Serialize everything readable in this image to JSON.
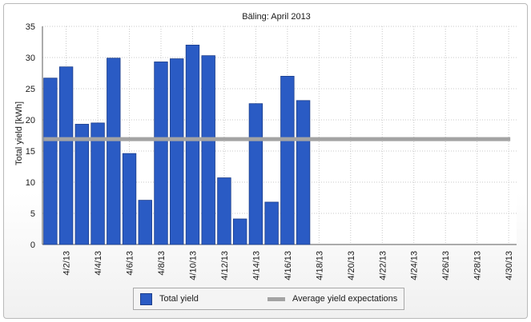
{
  "chart_data": {
    "type": "bar",
    "title": "Bäling: April 2013",
    "ylabel": "Total yield [kWh]",
    "xlabel": "",
    "ylim": [
      0,
      35
    ],
    "yticks": [
      0,
      5,
      10,
      15,
      20,
      25,
      30,
      35
    ],
    "categories": [
      "4/1/13",
      "4/2/13",
      "4/3/13",
      "4/4/13",
      "4/5/13",
      "4/6/13",
      "4/7/13",
      "4/8/13",
      "4/9/13",
      "4/10/13",
      "4/11/13",
      "4/12/13",
      "4/13/13",
      "4/14/13",
      "4/15/13",
      "4/16/13",
      "4/17/13",
      "4/18/13",
      "4/19/13",
      "4/20/13",
      "4/21/13",
      "4/22/13",
      "4/23/13",
      "4/24/13",
      "4/25/13",
      "4/26/13",
      "4/27/13",
      "4/28/13",
      "4/29/13",
      "4/30/13"
    ],
    "xtick_labels": [
      "4/2/13",
      "4/4/13",
      "4/6/13",
      "4/8/13",
      "4/10/13",
      "4/12/13",
      "4/14/13",
      "4/16/13",
      "4/18/13",
      "4/20/13",
      "4/22/13",
      "4/24/13",
      "4/26/13",
      "4/28/13",
      "4/30/13"
    ],
    "series": [
      {
        "name": "Total yield",
        "type": "bar",
        "color": "#2a5bc4",
        "values": [
          26.7,
          28.5,
          19.3,
          19.5,
          29.9,
          14.6,
          7.1,
          29.3,
          29.8,
          32.0,
          30.3,
          10.7,
          4.1,
          22.6,
          6.8,
          27.0,
          23.1,
          null,
          null,
          null,
          null,
          null,
          null,
          null,
          null,
          null,
          null,
          null,
          null,
          null
        ]
      },
      {
        "name": "Average yield expectations",
        "type": "line",
        "color": "#a3a3a3",
        "value": 16.9
      }
    ],
    "grid": true,
    "legend_position": "bottom"
  }
}
